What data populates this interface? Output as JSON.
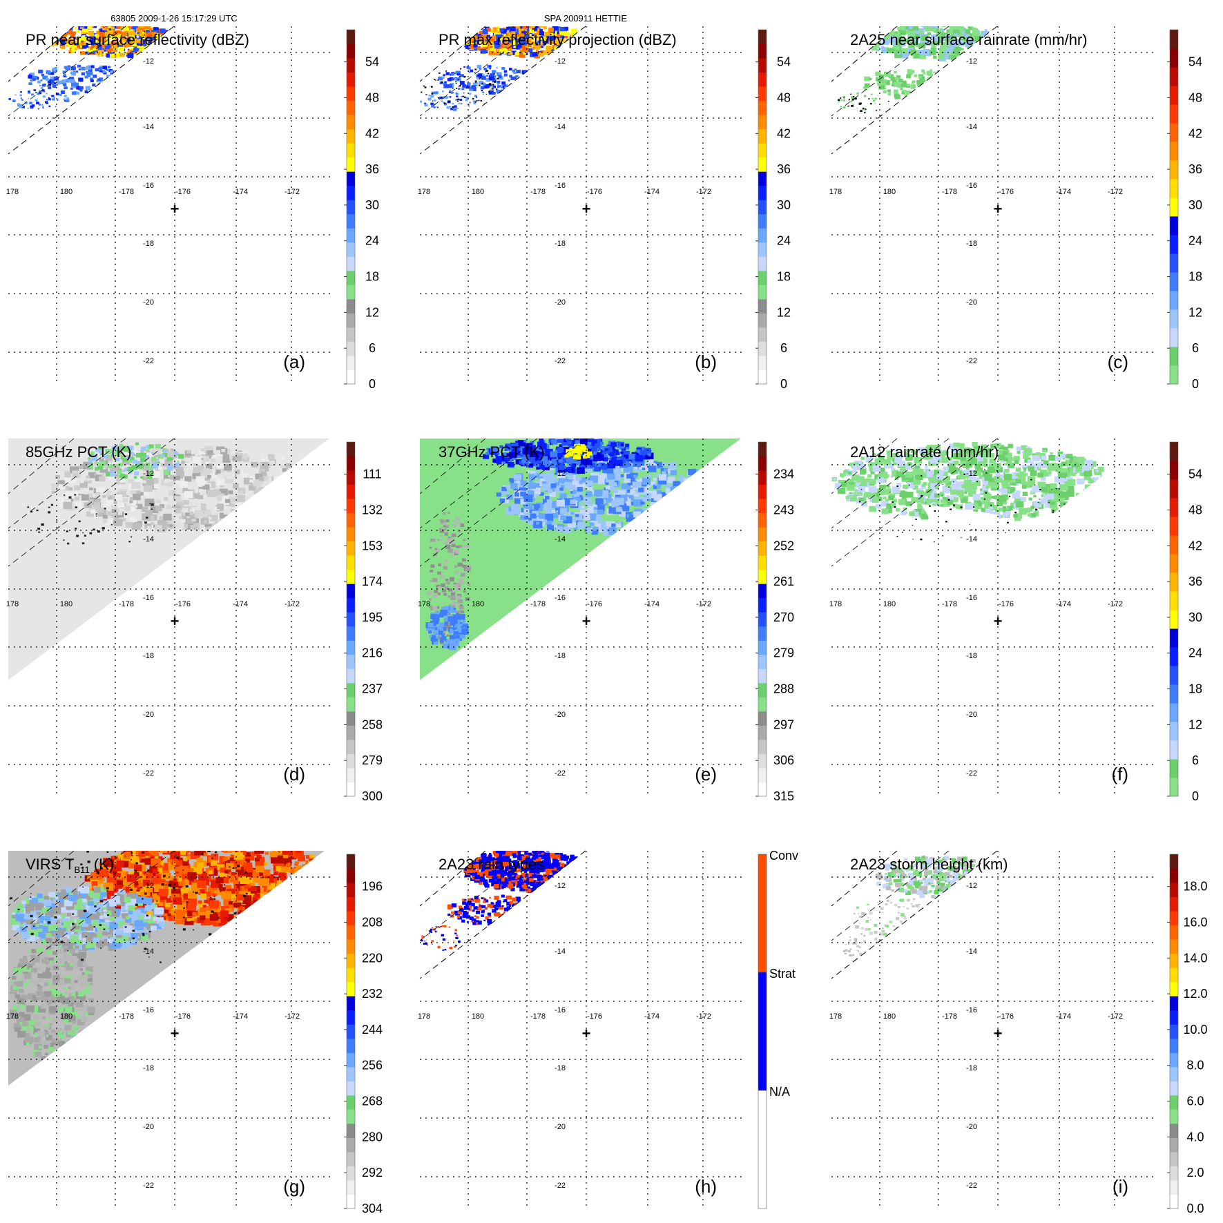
{
  "header": {
    "left": "63805 2009-1-26 15:17:29 UTC",
    "center": "SPA 200911 HETTIE"
  },
  "map": {
    "lon_ticks": [
      "178",
      "180",
      "-178",
      "-176",
      "-174",
      "-172"
    ],
    "lat_ticks": [
      "-12",
      "-14",
      "-16",
      "-18",
      "-20",
      "-22"
    ],
    "center_marker": "+",
    "center": {
      "lon": -176.0,
      "lat": -17.0
    }
  },
  "colors": {
    "gray": [
      "#ffffff",
      "#f0f0f0",
      "#dddddd",
      "#c6c6c6",
      "#aaaaaa",
      "#8c8c8c"
    ],
    "green": [
      "#88e088",
      "#6cd06c"
    ],
    "blue": [
      "#c6d8ff",
      "#9dc6ff",
      "#6aa8ff",
      "#3f7dff",
      "#2450ff",
      "#0a1fff",
      "#0000dd"
    ],
    "yellow": [
      "#ffff00",
      "#ffde00"
    ],
    "warm": [
      "#ffb400",
      "#ff8c00",
      "#ff6400",
      "#ff3a00",
      "#e61a00",
      "#b80a00",
      "#8a0000",
      "#5e1a10"
    ],
    "rain_conv": "#ff4d00",
    "rain_strat": "#0000ff",
    "rain_na": "#ffffff"
  },
  "panels": [
    {
      "id": "a",
      "label": "(a)",
      "title": "PR near surface reflectivity (dBZ)",
      "colorbar": {
        "type": "standard",
        "ticks": [
          "54",
          "48",
          "42",
          "36",
          "30",
          "24",
          "18",
          "12",
          "6",
          "0"
        ]
      },
      "swath": "pr",
      "fill": "pr_refl"
    },
    {
      "id": "b",
      "label": "(b)",
      "title": "PR max reflectivity projection (dBZ)",
      "colorbar": {
        "type": "standard",
        "ticks": [
          "54",
          "48",
          "42",
          "36",
          "30",
          "24",
          "18",
          "12",
          "6",
          "0"
        ]
      },
      "swath": "pr",
      "fill": "pr_max"
    },
    {
      "id": "c",
      "label": "(c)",
      "title": "2A25 near surface rainrate (mm/hr)",
      "colorbar": {
        "type": "rain",
        "ticks": [
          "54",
          "48",
          "42",
          "36",
          "30",
          "24",
          "18",
          "12",
          "6",
          "0"
        ]
      },
      "swath": "pr",
      "fill": "rain25"
    },
    {
      "id": "d",
      "label": "(d)",
      "title": "85GHz PCT (K)",
      "colorbar": {
        "type": "standard",
        "ticks": [
          "111",
          "132",
          "153",
          "174",
          "195",
          "216",
          "237",
          "258",
          "279",
          "300"
        ]
      },
      "swath": "tmi",
      "fill": "pct85"
    },
    {
      "id": "e",
      "label": "(e)",
      "title": "37GHz PCT (K)",
      "colorbar": {
        "type": "standard",
        "ticks": [
          "234",
          "243",
          "252",
          "261",
          "270",
          "279",
          "288",
          "297",
          "306",
          "315"
        ]
      },
      "swath": "tmi",
      "fill": "pct37"
    },
    {
      "id": "f",
      "label": "(f)",
      "title": "2A12 rainrate (mm/hr)",
      "colorbar": {
        "type": "rain",
        "ticks": [
          "54",
          "48",
          "42",
          "36",
          "30",
          "24",
          "18",
          "12",
          "6",
          "0"
        ]
      },
      "swath": "tmi",
      "fill": "rain12"
    },
    {
      "id": "g",
      "label": "(g)",
      "title": "VIRS T",
      "title_sub": "B11",
      "title_suffix": " (K)",
      "colorbar": {
        "type": "standard",
        "ticks": [
          "196",
          "208",
          "220",
          "232",
          "244",
          "256",
          "268",
          "280",
          "292",
          "304"
        ]
      },
      "swath": "virs",
      "fill": "virs"
    },
    {
      "id": "h",
      "label": "(h)",
      "title": "2A23 rain types",
      "colorbar": {
        "type": "categorical",
        "categories": [
          "Conv",
          "Strat",
          "N/A"
        ]
      },
      "swath": "pr",
      "fill": "raintype"
    },
    {
      "id": "i",
      "label": "(i)",
      "title": "2A23 storm height (km)",
      "colorbar": {
        "type": "standard",
        "ticks": [
          "18.0",
          "16.0",
          "14.0",
          "12.0",
          "10.0",
          "8.0",
          "6.0",
          "4.0",
          "2.0",
          "0.0"
        ]
      },
      "swath": "pr",
      "fill": "height"
    }
  ]
}
